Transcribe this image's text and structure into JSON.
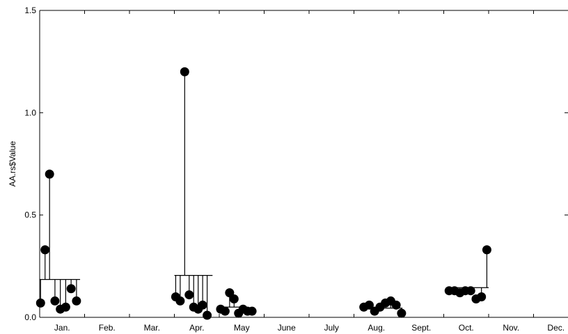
{
  "chart_data": {
    "type": "scatter",
    "title": "",
    "xlabel": "",
    "ylabel": "AA.rs$Value",
    "ylim": [
      0,
      1.5
    ],
    "y_ticks": [
      0,
      0.5,
      1.0,
      1.5
    ],
    "y_tick_labels": [
      "0.0",
      "0.5",
      "1.0",
      "1.5"
    ],
    "xlim": [
      0,
      12
    ],
    "x_ticks": [
      0,
      1,
      2,
      3,
      4,
      5,
      6,
      7,
      8,
      9,
      10,
      11,
      12
    ],
    "months": [
      "Jan.",
      "Feb.",
      "Mar.",
      "Apr.",
      "May",
      "June",
      "July",
      "Aug.",
      "Sept.",
      "Oct.",
      "Nov.",
      "Dec."
    ],
    "grid": false,
    "series": [
      {
        "points": [
          {
            "x": 0.02,
            "y": 0.07
          },
          {
            "x": 0.12,
            "y": 0.33
          },
          {
            "x": 0.22,
            "y": 0.7
          },
          {
            "x": 0.34,
            "y": 0.08
          },
          {
            "x": 0.46,
            "y": 0.04
          },
          {
            "x": 0.58,
            "y": 0.05
          },
          {
            "x": 0.7,
            "y": 0.14
          },
          {
            "x": 0.82,
            "y": 0.08
          },
          {
            "x": 3.03,
            "y": 0.1
          },
          {
            "x": 3.13,
            "y": 0.08
          },
          {
            "x": 3.23,
            "y": 1.2
          },
          {
            "x": 3.33,
            "y": 0.11
          },
          {
            "x": 3.43,
            "y": 0.05
          },
          {
            "x": 3.53,
            "y": 0.04
          },
          {
            "x": 3.63,
            "y": 0.06
          },
          {
            "x": 3.73,
            "y": 0.01
          },
          {
            "x": 4.03,
            "y": 0.04
          },
          {
            "x": 4.13,
            "y": 0.03
          },
          {
            "x": 4.23,
            "y": 0.12
          },
          {
            "x": 4.33,
            "y": 0.09
          },
          {
            "x": 4.43,
            "y": 0.02
          },
          {
            "x": 4.53,
            "y": 0.04
          },
          {
            "x": 4.63,
            "y": 0.03
          },
          {
            "x": 4.73,
            "y": 0.03
          },
          {
            "x": 7.22,
            "y": 0.05
          },
          {
            "x": 7.34,
            "y": 0.06
          },
          {
            "x": 7.46,
            "y": 0.03
          },
          {
            "x": 7.58,
            "y": 0.05
          },
          {
            "x": 7.7,
            "y": 0.07
          },
          {
            "x": 7.82,
            "y": 0.08
          },
          {
            "x": 7.94,
            "y": 0.06
          },
          {
            "x": 8.06,
            "y": 0.02
          },
          {
            "x": 9.12,
            "y": 0.13
          },
          {
            "x": 9.24,
            "y": 0.13
          },
          {
            "x": 9.36,
            "y": 0.12
          },
          {
            "x": 9.48,
            "y": 0.13
          },
          {
            "x": 9.6,
            "y": 0.13
          },
          {
            "x": 9.72,
            "y": 0.09
          },
          {
            "x": 9.84,
            "y": 0.1
          },
          {
            "x": 9.96,
            "y": 0.33
          }
        ]
      }
    ],
    "reference_segments": [
      {
        "x0": 0.0,
        "x1": 0.9,
        "y": 0.185,
        "points": [
          0,
          1,
          2,
          3,
          4,
          5,
          6,
          7
        ]
      },
      {
        "x0": 3.0,
        "x1": 3.85,
        "y": 0.205,
        "points": [
          8,
          9,
          10,
          11,
          12,
          13,
          14,
          15
        ]
      },
      {
        "x0": 4.05,
        "x1": 4.55,
        "y": 0.05,
        "points": [
          17,
          18,
          19
        ]
      },
      {
        "x0": 7.55,
        "x1": 8.08,
        "y": 0.045,
        "points": [
          29,
          30,
          31
        ]
      },
      {
        "x0": 9.1,
        "x1": 10.0,
        "y": 0.145,
        "points": [
          38,
          39
        ]
      }
    ]
  }
}
